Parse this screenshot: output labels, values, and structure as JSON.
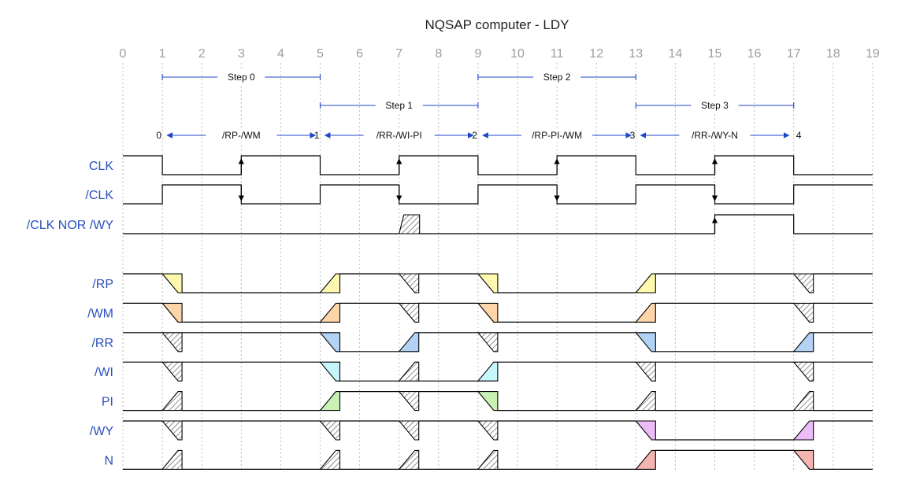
{
  "title": "NQSAP computer - LDY",
  "ticks": [
    "0",
    "1",
    "2",
    "3",
    "4",
    "5",
    "6",
    "7",
    "8",
    "9",
    "10",
    "11",
    "12",
    "13",
    "14",
    "15",
    "16",
    "17",
    "18",
    "19"
  ],
  "colors": {
    "label": "#2a4fbf",
    "arrow": "#1f47c8",
    "RP": "#fff9b0",
    "WM": "#fdd5a8",
    "RR": "#b3d3f6",
    "WI": "#c6f6fb",
    "PI": "#c8f2b4",
    "WY": "#ecbcf7",
    "N": "#f4b4b0",
    "hatch": "#555555"
  },
  "steps": [
    {
      "label": "Step 0",
      "from": 1,
      "to": 5,
      "row": 0
    },
    {
      "label": "Step 1",
      "from": 5,
      "to": 9,
      "row": 1
    },
    {
      "label": "Step 2",
      "from": 9,
      "to": 13,
      "row": 0
    },
    {
      "label": "Step 3",
      "from": 13,
      "to": 17,
      "row": 1
    }
  ],
  "microsteps": [
    {
      "label": "/RP-/WM",
      "from": 1,
      "to": 5,
      "start_num": "0",
      "end_num": "1"
    },
    {
      "label": "/RR-/WI-PI",
      "from": 5,
      "to": 9,
      "start_num": "1",
      "end_num": "2"
    },
    {
      "label": "/RP-PI-/WM",
      "from": 9,
      "to": 13,
      "start_num": "2",
      "end_num": "3"
    },
    {
      "label": "/RR-/WY-N",
      "from": 13,
      "to": 17,
      "start_num": "3",
      "end_num": "4"
    }
  ],
  "clocks": [
    {
      "name": "CLK",
      "inverted": false,
      "up_arrows": [
        3,
        7,
        11,
        15
      ]
    },
    {
      "name": "/CLK",
      "inverted": true,
      "down_arrows": [
        3,
        7,
        11,
        15
      ]
    }
  ],
  "nor_signal": {
    "name": "/CLK NOR /WY",
    "hatch_at": 7,
    "high_from": 15,
    "high_to": 17,
    "up_arrow": 15
  },
  "signals": [
    {
      "name": "/RP",
      "color": "RP",
      "levels": [
        1,
        0,
        1,
        1,
        0,
        1,
        1
      ]
    },
    {
      "name": "/WM",
      "color": "WM",
      "levels": [
        1,
        0,
        1,
        1,
        0,
        1,
        1
      ]
    },
    {
      "name": "/RR",
      "color": "RR",
      "levels": [
        1,
        1,
        0,
        1,
        1,
        0,
        1
      ]
    },
    {
      "name": "/WI",
      "color": "WI",
      "levels": [
        1,
        1,
        0,
        0,
        1,
        1,
        1
      ]
    },
    {
      "name": "PI",
      "color": "PI",
      "levels": [
        0,
        0,
        1,
        1,
        0,
        0,
        0
      ]
    },
    {
      "name": "/WY",
      "color": "WY",
      "levels": [
        1,
        1,
        1,
        1,
        1,
        0,
        1
      ]
    },
    {
      "name": "N",
      "color": "N",
      "levels": [
        0,
        0,
        0,
        0,
        0,
        1,
        0
      ]
    }
  ]
}
